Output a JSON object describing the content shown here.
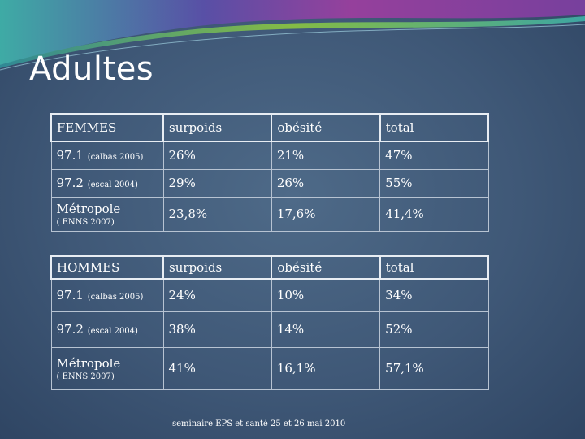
{
  "slide": {
    "title": "Adultes",
    "footer": "seminaire EPS et santé 25 et 26 mai 2010"
  },
  "tables": [
    {
      "header": [
        "FEMMES",
        "surpoids",
        "obésité",
        "total"
      ],
      "rows": [
        {
          "label": "97.1",
          "sublabel": "(calbas 2005)",
          "surpoids": "26%",
          "obesite": "21%",
          "total": "47%"
        },
        {
          "label": "97.2",
          "sublabel": "(escal 2004)",
          "surpoids": "29%",
          "obesite": "26%",
          "total": "55%"
        },
        {
          "label": "Métropole",
          "sublabel": "( ENNS 2007)",
          "surpoids": "23,8%",
          "obesite": "17,6%",
          "total": "41,4%"
        }
      ]
    },
    {
      "header": [
        "HOMMES",
        "surpoids",
        "obésité",
        "total"
      ],
      "rows": [
        {
          "label": "97.1",
          "sublabel": "(calbas 2005)",
          "surpoids": "24%",
          "obesite": "10%",
          "total": "34%"
        },
        {
          "label": "97.2",
          "sublabel": "(escal 2004)",
          "surpoids": "38%",
          "obesite": "14%",
          "total": "52%"
        },
        {
          "label": "Métropole",
          "sublabel": "( ENNS 2007)",
          "surpoids": "41%",
          "obesite": "16,1%",
          "total": "57,1%"
        }
      ]
    }
  ],
  "colors": {
    "background": "#3f5877",
    "swoosh_purple": "#7b3fa0",
    "swoosh_teal": "#3fb0a8",
    "swoosh_green": "#8cc63f",
    "text": "#ffffff"
  }
}
